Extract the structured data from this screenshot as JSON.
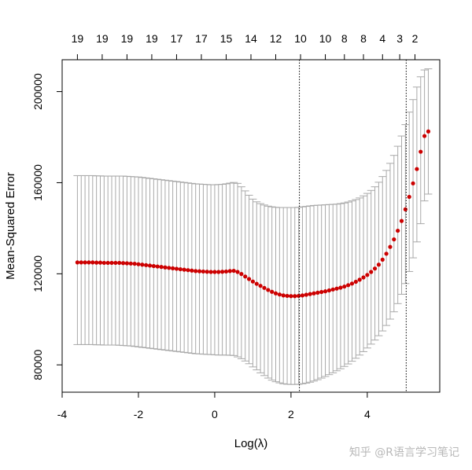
{
  "chart_data": {
    "type": "scatter",
    "xlabel": "Log(λ)",
    "ylabel": "Mean-Squared Error",
    "xlim": [
      -4,
      5.9
    ],
    "ylim": [
      68000,
      214000
    ],
    "x_ticks": [
      -4,
      -2,
      0,
      2,
      4
    ],
    "x_tick_labels": [
      "-4",
      "-2",
      "0",
      "2",
      "4"
    ],
    "y_ticks": [
      80000,
      120000,
      160000,
      200000
    ],
    "y_tick_labels": [
      "80000",
      "120000",
      "160000",
      "200000"
    ],
    "top_axis_ticks": [
      -3.6,
      -2.95,
      -2.3,
      -1.65,
      -1.0,
      -0.35,
      0.3,
      0.95,
      1.6,
      2.25,
      2.9,
      3.4,
      3.9,
      4.4,
      4.85,
      5.25
    ],
    "top_axis_labels": [
      "19",
      "19",
      "19",
      "19",
      "17",
      "17",
      "15",
      "14",
      "12",
      "10",
      "10",
      "8",
      "8",
      "4",
      "3",
      "2"
    ],
    "vlines": [
      2.22,
      5.02
    ],
    "grid": false,
    "point_color": "#cc0000",
    "errorbar_color": "#a9a9a9",
    "watermark": "知乎 @R语言学习笔记",
    "series": [
      {
        "x": [
          -3.6,
          -3.5,
          -3.4,
          -3.3,
          -3.2,
          -3.1,
          -3.0,
          -2.9,
          -2.8,
          -2.7,
          -2.6,
          -2.5,
          -2.4,
          -2.3,
          -2.2,
          -2.1,
          -2.0,
          -1.9,
          -1.8,
          -1.7,
          -1.6,
          -1.5,
          -1.4,
          -1.3,
          -1.2,
          -1.1,
          -1.0,
          -0.9,
          -0.8,
          -0.7,
          -0.6,
          -0.5,
          -0.4,
          -0.3,
          -0.2,
          -0.1,
          0.0,
          0.1,
          0.2,
          0.3,
          0.4,
          0.5,
          0.6,
          0.7,
          0.8,
          0.9,
          1.0,
          1.1,
          1.2,
          1.3,
          1.4,
          1.5,
          1.6,
          1.7,
          1.8,
          1.9,
          2.0,
          2.1,
          2.2,
          2.3,
          2.4,
          2.5,
          2.6,
          2.7,
          2.8,
          2.9,
          3.0,
          3.1,
          3.2,
          3.3,
          3.4,
          3.5,
          3.6,
          3.7,
          3.8,
          3.9,
          4.0,
          4.1,
          4.2,
          4.3,
          4.4,
          4.5,
          4.6,
          4.7,
          4.8,
          4.9,
          5.0,
          5.1,
          5.2,
          5.3,
          5.4,
          5.5,
          5.6
        ],
        "y": [
          125000,
          125000,
          125000,
          125000,
          125000,
          124900,
          124900,
          124800,
          124800,
          124800,
          124800,
          124800,
          124700,
          124600,
          124500,
          124400,
          124200,
          124000,
          123800,
          123600,
          123400,
          123200,
          123000,
          122800,
          122600,
          122400,
          122200,
          122000,
          121800,
          121600,
          121400,
          121200,
          121100,
          121000,
          120900,
          120800,
          120800,
          120800,
          120900,
          121000,
          121200,
          121300,
          120800,
          119900,
          118800,
          117700,
          116600,
          115600,
          114700,
          113800,
          112900,
          112100,
          111400,
          110900,
          110500,
          110300,
          110200,
          110200,
          110300,
          110500,
          110800,
          111100,
          111400,
          111700,
          112000,
          112300,
          112700,
          113100,
          113500,
          113900,
          114400,
          115000,
          115700,
          116500,
          117400,
          118400,
          119500,
          120800,
          122300,
          124000,
          126200,
          128800,
          131800,
          135100,
          138900,
          143200,
          148300,
          153800,
          159700,
          166000,
          173600,
          180500,
          182500
        ],
        "lower": [
          88900,
          88900,
          88900,
          88900,
          88900,
          88800,
          88800,
          88700,
          88700,
          88700,
          88700,
          88600,
          88500,
          88400,
          88300,
          88100,
          87900,
          87700,
          87500,
          87300,
          87100,
          86900,
          86700,
          86500,
          86300,
          86100,
          85900,
          85700,
          85500,
          85300,
          85100,
          84900,
          84800,
          84700,
          84600,
          84500,
          84400,
          84300,
          84300,
          84300,
          84200,
          84100,
          83500,
          82700,
          81700,
          80500,
          79100,
          77800,
          76500,
          75300,
          74200,
          73300,
          72600,
          72100,
          71700,
          71500,
          71400,
          71400,
          71500,
          71700,
          72000,
          72400,
          72900,
          73500,
          74200,
          74900,
          75700,
          76500,
          77400,
          78300,
          79300,
          80400,
          81600,
          82900,
          84300,
          85800,
          87400,
          89100,
          90900,
          92800,
          94900,
          97300,
          100100,
          103300,
          106900,
          111000,
          115700,
          121000,
          127000,
          134000,
          142000,
          152000,
          155000
        ],
        "upper": [
          163100,
          163100,
          163100,
          163100,
          163100,
          163000,
          163000,
          162900,
          162900,
          162900,
          162900,
          162900,
          162900,
          162800,
          162700,
          162600,
          162500,
          162300,
          162100,
          161900,
          161700,
          161500,
          161300,
          161100,
          160900,
          160700,
          160500,
          160300,
          160100,
          159900,
          159700,
          159500,
          159400,
          159300,
          159200,
          159100,
          159100,
          159200,
          159300,
          159500,
          159800,
          160100,
          159700,
          158200,
          156400,
          154500,
          152800,
          151600,
          150800,
          150200,
          149700,
          149400,
          149200,
          149100,
          149100,
          149100,
          149100,
          149100,
          149200,
          149400,
          149600,
          149800,
          150000,
          150100,
          150200,
          150300,
          150400,
          150500,
          150600,
          150800,
          151100,
          151500,
          152000,
          152600,
          153300,
          154200,
          155300,
          156600,
          158200,
          160200,
          162700,
          165400,
          168500,
          172000,
          176000,
          180500,
          185500,
          191000,
          196500,
          202000,
          206500,
          209500,
          210000
        ]
      }
    ]
  }
}
